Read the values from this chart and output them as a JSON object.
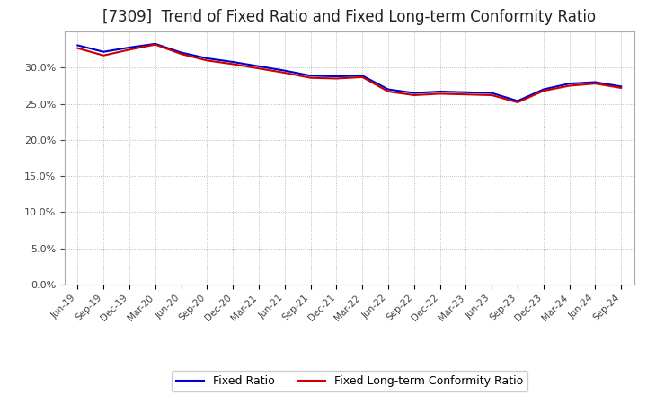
{
  "title": "[7309]  Trend of Fixed Ratio and Fixed Long-term Conformity Ratio",
  "x_labels": [
    "Jun-19",
    "Sep-19",
    "Dec-19",
    "Mar-20",
    "Jun-20",
    "Sep-20",
    "Dec-20",
    "Mar-21",
    "Jun-21",
    "Sep-21",
    "Dec-21",
    "Mar-22",
    "Jun-22",
    "Sep-22",
    "Dec-22",
    "Mar-23",
    "Jun-23",
    "Sep-23",
    "Dec-23",
    "Mar-24",
    "Jun-24",
    "Sep-24"
  ],
  "fixed_ratio": [
    0.331,
    0.322,
    0.328,
    0.333,
    0.321,
    0.313,
    0.308,
    0.302,
    0.296,
    0.289,
    0.288,
    0.289,
    0.27,
    0.265,
    0.267,
    0.266,
    0.265,
    0.254,
    0.27,
    0.278,
    0.28,
    0.274
  ],
  "fixed_longterm": [
    0.327,
    0.317,
    0.325,
    0.332,
    0.319,
    0.31,
    0.305,
    0.299,
    0.293,
    0.286,
    0.285,
    0.287,
    0.267,
    0.262,
    0.264,
    0.263,
    0.262,
    0.252,
    0.268,
    0.275,
    0.278,
    0.272
  ],
  "fixed_ratio_color": "#0000cc",
  "fixed_longterm_color": "#cc0000",
  "ylim": [
    0.0,
    0.35
  ],
  "yticks": [
    0.0,
    0.05,
    0.1,
    0.15,
    0.2,
    0.25,
    0.3
  ],
  "background_color": "#ffffff",
  "plot_bg_color": "#ffffff",
  "grid_color": "#888888",
  "legend_fixed_ratio": "Fixed Ratio",
  "legend_fixed_longterm": "Fixed Long-term Conformity Ratio",
  "title_fontsize": 12,
  "line_width": 1.5
}
